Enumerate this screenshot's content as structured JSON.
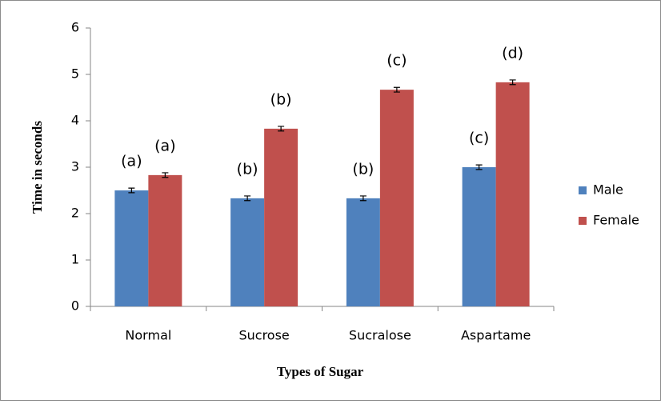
{
  "chart_data": {
    "type": "bar",
    "x_label": "Types of Sugar",
    "y_label": "Time in seconds",
    "categories": [
      "Normal",
      "Sucrose",
      "Sucralose",
      "Aspartame"
    ],
    "series": [
      {
        "name": "Male",
        "color": "#4f81bd",
        "values": [
          2.5,
          2.33,
          2.33,
          3.0
        ],
        "errors": [
          0.05,
          0.05,
          0.05,
          0.05
        ],
        "annotations": [
          "(a)",
          "(b)",
          "(b)",
          "(c)"
        ]
      },
      {
        "name": "Female",
        "color": "#c0504d",
        "values": [
          2.83,
          3.83,
          4.67,
          4.83
        ],
        "errors": [
          0.05,
          0.05,
          0.05,
          0.05
        ],
        "annotations": [
          "(a)",
          "(b)",
          "(c)",
          "(d)"
        ]
      }
    ],
    "ylim": [
      0,
      6
    ],
    "yticks": [
      0,
      1,
      2,
      3,
      4,
      5,
      6
    ],
    "legend": "right"
  }
}
